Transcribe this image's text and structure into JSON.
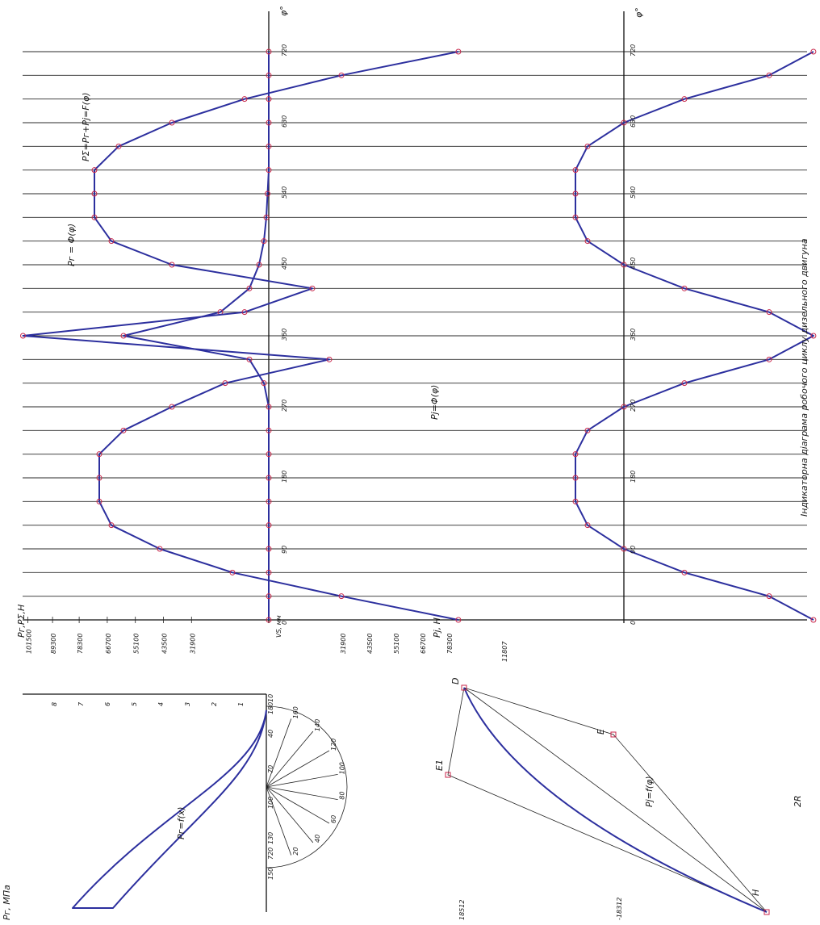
{
  "title_caption": "Індикаторна діаграма робочого циклу дизельного двигуна",
  "axes": {
    "pg_psum_label": "Pг,PΣ,H",
    "pj_label": "Pj, H",
    "pressure_label": "Pг, МПа",
    "phi_label_top": "φ°",
    "phi_label_bottom": "φ°",
    "vs_label": "VS, мм",
    "force_ticks_top": [
      "101500",
      "89300",
      "78300",
      "66700",
      "55100",
      "43500",
      "31900"
    ],
    "force_ticks_bottom": [
      "31900",
      "43500",
      "55100",
      "66700",
      "78300"
    ],
    "pressure_ticks": [
      "8",
      "7",
      "6",
      "5",
      "4",
      "3",
      "2",
      "1"
    ],
    "phi_ticks": [
      "0",
      "90",
      "180",
      "270",
      "360",
      "450",
      "540",
      "630",
      "720"
    ],
    "stroke_ticks": [
      "10",
      "40",
      "70",
      "100",
      "130",
      "150"
    ],
    "crank_angle_pairs": [
      "180\n540",
      "160\n520",
      "140\n500",
      "120\n480",
      "100\n460",
      "80\n440",
      "60\n420",
      "40\n400",
      "20\n380",
      "720\n360"
    ]
  },
  "labels": {
    "psum": "PΣ=Pг+Pj=F(φ)",
    "pg_phi": "Pг = Φ(φ)",
    "pj_phi": "Pj=Φ(φ)",
    "pg_x": "Pг=f(x)",
    "pj_f": "Pj=f(φ)",
    "point_D": "D",
    "point_E": "E",
    "point_E1": "E1",
    "point_H": "H",
    "dim_2R": "2R",
    "dim_11807": "11807",
    "dim_18512_top": "18512",
    "dim_18312_bottom": "-18312"
  },
  "chart_data": {
    "type": "line",
    "x_unit": "φ°",
    "x": [
      0,
      30,
      60,
      90,
      120,
      150,
      180,
      210,
      240,
      270,
      300,
      330,
      360,
      390,
      420,
      450,
      480,
      510,
      540,
      570,
      600,
      630,
      660,
      690,
      720
    ],
    "series": [
      {
        "name": "Pг = Φ(φ)",
        "values": [
          0,
          0,
          0,
          0,
          0,
          0,
          0,
          0,
          0,
          0,
          2000,
          8000,
          60000,
          20000,
          8000,
          4000,
          2000,
          1000,
          500,
          0,
          0,
          0,
          0,
          0,
          0
        ]
      },
      {
        "name": "PΣ=Pг+Pj=F(φ)",
        "values": [
          -78300,
          -30000,
          15000,
          45000,
          65000,
          70000,
          70000,
          70000,
          60000,
          40000,
          18000,
          -25000,
          101500,
          10000,
          -18000,
          40000,
          65000,
          72000,
          72000,
          72000,
          62000,
          40000,
          10000,
          -30000,
          -78300
        ]
      },
      {
        "name": "Pj=Φ(φ)",
        "values": [
          -78300,
          -60000,
          -25000,
          0,
          15000,
          20000,
          20000,
          20000,
          15000,
          0,
          -25000,
          -60000,
          -78300,
          -60000,
          -25000,
          0,
          15000,
          20000,
          20000,
          20000,
          15000,
          0,
          -25000,
          -60000,
          -78300
        ]
      }
    ]
  }
}
